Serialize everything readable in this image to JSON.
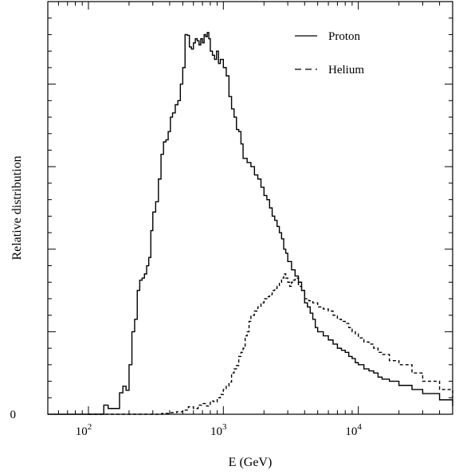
{
  "chart_data": {
    "type": "line",
    "title": "",
    "xlabel": "E (GeV)",
    "ylabel": "Relative distribution",
    "x_scale": "log",
    "xlim": [
      50,
      50000
    ],
    "ylim": [
      0,
      1
    ],
    "grid": false,
    "legend_position": "top-right",
    "x_tick_labels": [
      {
        "value": 100,
        "base": "10",
        "exp": "2"
      },
      {
        "value": 1000,
        "base": "10",
        "exp": "3"
      },
      {
        "value": 10000,
        "base": "10",
        "exp": "4"
      }
    ],
    "y_tick_labels": [
      {
        "value": 0,
        "label": "0"
      }
    ],
    "series": [
      {
        "name": "Proton",
        "line_style": "solid",
        "color": "#000000",
        "x": [
          50,
          70,
          100,
          125,
          130,
          140,
          150,
          160,
          170,
          180,
          190,
          200,
          210,
          220,
          230,
          240,
          250,
          260,
          270,
          280,
          290,
          300,
          315,
          330,
          345,
          360,
          375,
          390,
          405,
          420,
          440,
          460,
          480,
          500,
          520,
          540,
          560,
          580,
          600,
          620,
          640,
          660,
          680,
          700,
          720,
          740,
          760,
          780,
          800,
          830,
          860,
          890,
          920,
          950,
          1000,
          1050,
          1100,
          1150,
          1200,
          1250,
          1300,
          1350,
          1400,
          1500,
          1600,
          1700,
          1800,
          1900,
          2000,
          2100,
          2200,
          2300,
          2400,
          2500,
          2600,
          2700,
          2800,
          2900,
          3000,
          3200,
          3400,
          3600,
          3800,
          4000,
          4200,
          4400,
          4600,
          4800,
          5000,
          5500,
          6000,
          6500,
          7000,
          7500,
          8000,
          8500,
          9000,
          9500,
          10000,
          11000,
          12000,
          13000,
          14000,
          15000,
          17000,
          20000,
          25000,
          30000,
          40000,
          50000
        ],
        "y": [
          0,
          0,
          0,
          0,
          0.022,
          0.014,
          0.014,
          0.014,
          0.052,
          0.068,
          0.058,
          0.12,
          0.2,
          0.23,
          0.3,
          0.325,
          0.33,
          0.34,
          0.36,
          0.38,
          0.445,
          0.49,
          0.515,
          0.57,
          0.63,
          0.66,
          0.665,
          0.685,
          0.72,
          0.73,
          0.75,
          0.76,
          0.8,
          0.84,
          0.92,
          0.918,
          0.89,
          0.885,
          0.9,
          0.91,
          0.905,
          0.895,
          0.91,
          0.9,
          0.92,
          0.915,
          0.925,
          0.91,
          0.88,
          0.87,
          0.86,
          0.88,
          0.85,
          0.86,
          0.84,
          0.82,
          0.77,
          0.74,
          0.72,
          0.69,
          0.685,
          0.655,
          0.62,
          0.61,
          0.6,
          0.58,
          0.57,
          0.55,
          0.53,
          0.52,
          0.5,
          0.48,
          0.47,
          0.455,
          0.44,
          0.425,
          0.4,
          0.39,
          0.37,
          0.35,
          0.335,
          0.32,
          0.3,
          0.27,
          0.26,
          0.245,
          0.23,
          0.21,
          0.2,
          0.19,
          0.18,
          0.17,
          0.16,
          0.155,
          0.15,
          0.14,
          0.135,
          0.125,
          0.12,
          0.11,
          0.105,
          0.1,
          0.09,
          0.085,
          0.08,
          0.07,
          0.06,
          0.05,
          0.035,
          0.02
        ]
      },
      {
        "name": "Helium",
        "line_style": "dashed",
        "color": "#000000",
        "x": [
          100,
          150,
          200,
          250,
          300,
          350,
          400,
          450,
          500,
          550,
          600,
          650,
          700,
          750,
          800,
          850,
          900,
          950,
          1000,
          1050,
          1100,
          1150,
          1200,
          1250,
          1300,
          1350,
          1400,
          1450,
          1500,
          1550,
          1600,
          1700,
          1800,
          1900,
          2000,
          2100,
          2200,
          2300,
          2400,
          2500,
          2600,
          2700,
          2800,
          2900,
          3000,
          3100,
          3200,
          3300,
          3400,
          3600,
          3800,
          4000,
          4300,
          4600,
          5000,
          5500,
          6000,
          6500,
          7000,
          7500,
          8000,
          8500,
          9000,
          9500,
          10000,
          11000,
          12000,
          13000,
          14000,
          15000,
          17000,
          20000,
          25000,
          30000,
          40000,
          50000
        ],
        "y": [
          0,
          0,
          0,
          0,
          0,
          0.002,
          0.004,
          0.006,
          0.01,
          0.018,
          0.014,
          0.022,
          0.026,
          0.02,
          0.032,
          0.03,
          0.04,
          0.048,
          0.06,
          0.068,
          0.078,
          0.1,
          0.11,
          0.118,
          0.14,
          0.15,
          0.16,
          0.19,
          0.2,
          0.225,
          0.24,
          0.25,
          0.26,
          0.27,
          0.28,
          0.285,
          0.29,
          0.3,
          0.305,
          0.31,
          0.32,
          0.33,
          0.34,
          0.33,
          0.32,
          0.31,
          0.32,
          0.325,
          0.33,
          0.31,
          0.3,
          0.28,
          0.275,
          0.27,
          0.26,
          0.255,
          0.25,
          0.24,
          0.23,
          0.225,
          0.22,
          0.21,
          0.2,
          0.195,
          0.185,
          0.175,
          0.17,
          0.16,
          0.15,
          0.145,
          0.13,
          0.12,
          0.1,
          0.08,
          0.06,
          0.04
        ]
      }
    ]
  }
}
